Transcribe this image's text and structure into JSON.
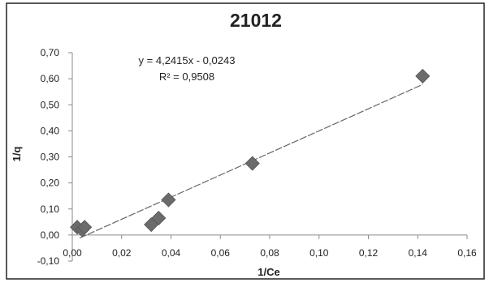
{
  "chart_data": {
    "type": "scatter",
    "title": "21012",
    "xlabel": "1/Ce",
    "ylabel": "1/q",
    "xlim": [
      0,
      0.16
    ],
    "ylim": [
      -0.1,
      0.7
    ],
    "x_ticks": [
      0,
      0.02,
      0.04,
      0.06,
      0.08,
      0.1,
      0.12,
      0.14,
      0.16
    ],
    "x_tick_labels": [
      "0,00",
      "0,02",
      "0,04",
      "0,06",
      "0,08",
      "0,10",
      "0,12",
      "0,14",
      "0,16"
    ],
    "y_ticks": [
      -0.1,
      0,
      0.1,
      0.2,
      0.3,
      0.4,
      0.5,
      0.6,
      0.7
    ],
    "y_tick_labels": [
      "-0,10",
      "0,00",
      "0,10",
      "0,20",
      "0,30",
      "0,40",
      "0,50",
      "0,60",
      "0,70"
    ],
    "grid": false,
    "legend": "none",
    "points": [
      {
        "x": 0.002,
        "y": 0.03
      },
      {
        "x": 0.004,
        "y": 0.02
      },
      {
        "x": 0.005,
        "y": 0.03
      },
      {
        "x": 0.032,
        "y": 0.04
      },
      {
        "x": 0.035,
        "y": 0.065
      },
      {
        "x": 0.039,
        "y": 0.135
      },
      {
        "x": 0.073,
        "y": 0.275
      },
      {
        "x": 0.142,
        "y": 0.61
      }
    ],
    "trendline": {
      "slope": 4.2415,
      "intercept": -0.0243,
      "x_start": 0.003,
      "x_end": 0.142
    },
    "equation_label": "y = 4,2415x - 0,0243",
    "r2_label": "R² = 0,9508",
    "marker_color": "#6b6b6b",
    "line_color": "#666666"
  }
}
